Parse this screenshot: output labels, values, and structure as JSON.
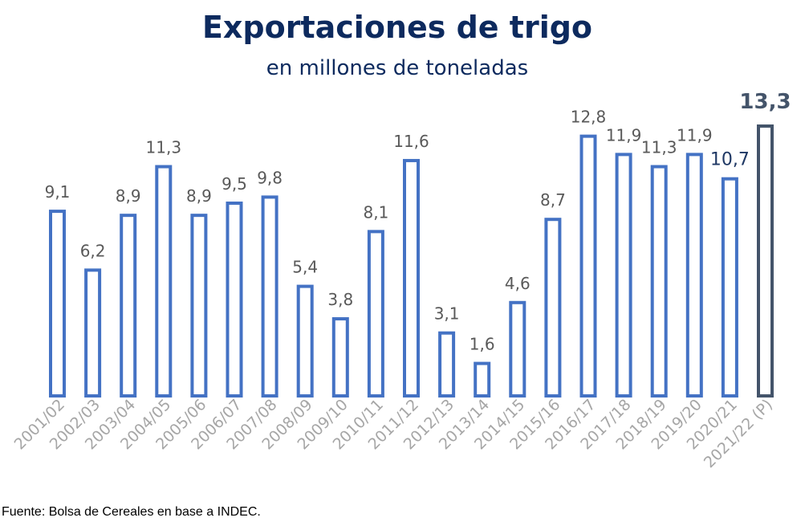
{
  "chart_data": {
    "type": "bar",
    "title": "Exportaciones de trigo",
    "subtitle": "en millones de toneladas",
    "categories": [
      "2001/02",
      "2002/03",
      "2003/04",
      "2004/05",
      "2005/06",
      "2006/07",
      "2007/08",
      "2008/09",
      "2009/10",
      "2010/11",
      "2011/12",
      "2012/13",
      "2013/14",
      "2014/15",
      "2015/16",
      "2016/17",
      "2017/18",
      "2018/19",
      "2019/20",
      "2020/21",
      "2021/22 (P)"
    ],
    "values": [
      9.1,
      6.2,
      8.9,
      11.3,
      8.9,
      9.5,
      9.8,
      5.4,
      3.8,
      8.1,
      11.6,
      3.1,
      1.6,
      4.6,
      8.7,
      12.8,
      11.9,
      11.3,
      11.9,
      10.7,
      13.3
    ],
    "value_labels": [
      "9,1",
      "6,2",
      "8,9",
      "11,3",
      "8,9",
      "9,5",
      "9,8",
      "5,4",
      "3,8",
      "8,1",
      "11,6",
      "3,1",
      "1,6",
      "4,6",
      "8,7",
      "12,8",
      "11,9",
      "11,3",
      "11,9",
      "10,7",
      "13,3"
    ],
    "ylim": [
      0,
      13.3
    ],
    "grid": false,
    "colors": {
      "bar": "#4472c4",
      "highlight_bar": "#44546a",
      "label": "#595959",
      "label_2020_21": "#1f3864",
      "label_2021_22": "#44546a",
      "axis_tick": "#a6a6a6",
      "title": "#0d2a5e"
    }
  },
  "source": "Fuente: Bolsa de Cereales en base a INDEC."
}
